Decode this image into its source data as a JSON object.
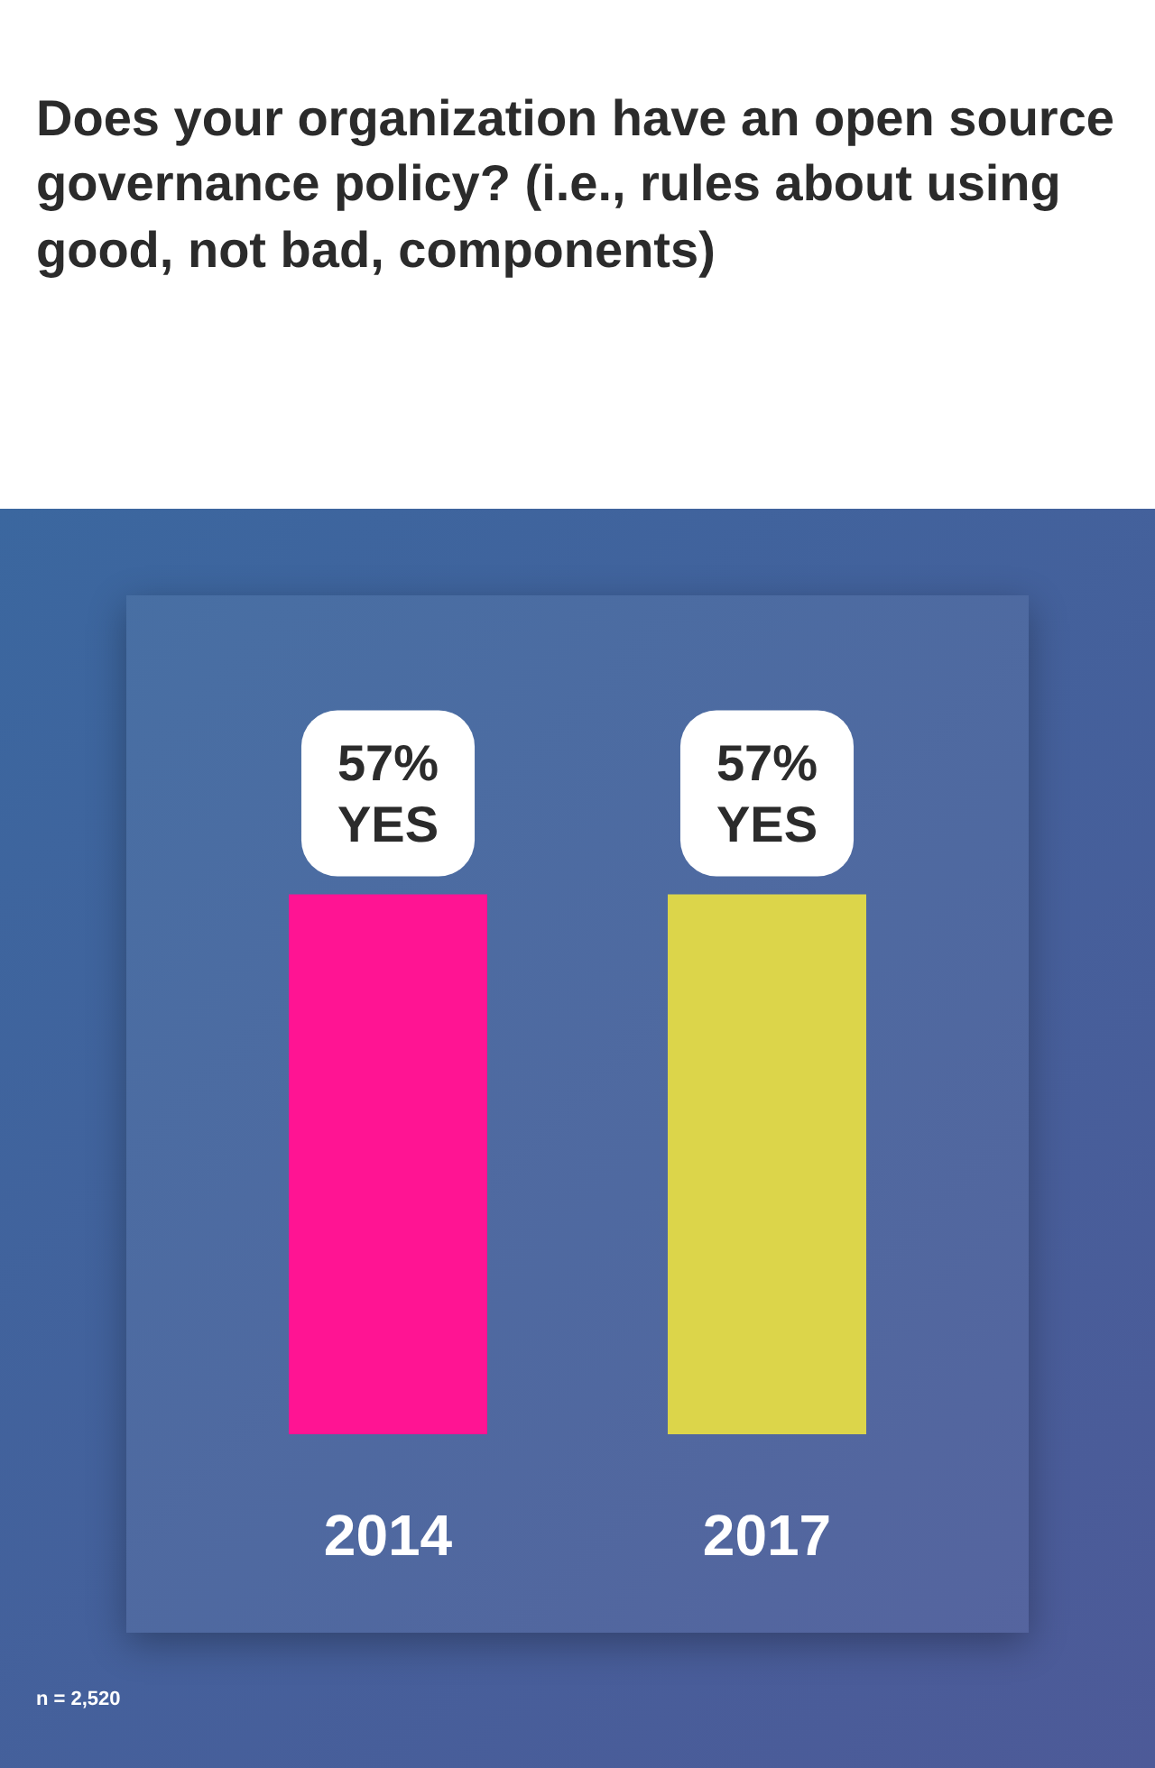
{
  "chart_data": {
    "type": "bar",
    "title": "Does your organization have an open source governance policy? (i.e., rules about using good, not bad, components)",
    "categories": [
      "2014",
      "2017"
    ],
    "values": [
      57,
      57
    ],
    "colors": [
      "#ff1493",
      "#dcd54a"
    ],
    "value_labels": [
      "57% YES",
      "57% YES"
    ],
    "grid": false,
    "annotations": [
      "n = 2,520"
    ]
  }
}
